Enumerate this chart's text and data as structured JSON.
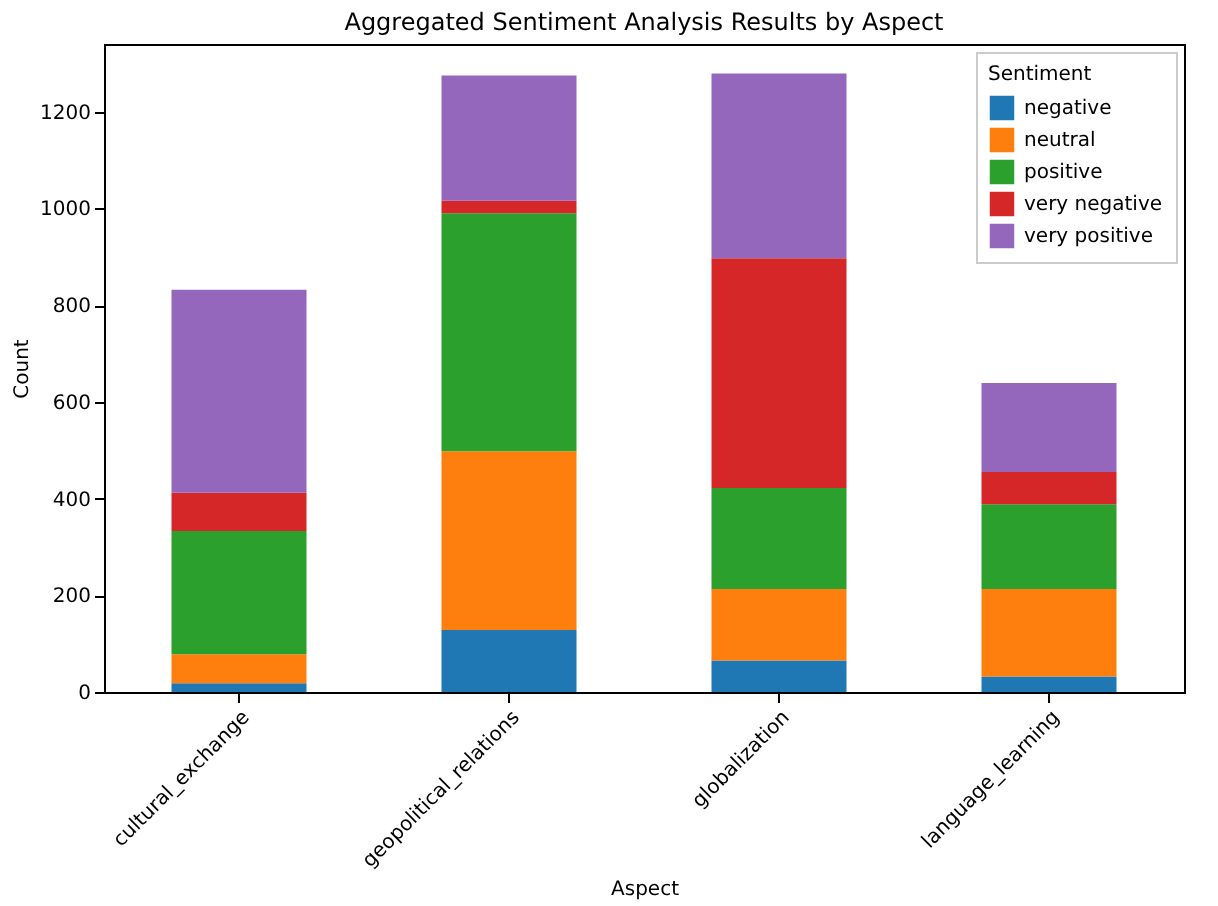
{
  "chart_data": {
    "type": "bar",
    "title": "Aggregated Sentiment Analysis Results by Aspect",
    "xlabel": "Aspect",
    "ylabel": "Count",
    "legend_title": "Sentiment",
    "categories": [
      "cultural_exchange",
      "geopolitical_relations",
      "globalization",
      "language_learning"
    ],
    "series": [
      {
        "name": "negative",
        "color": "#1f77b4",
        "values": [
          18,
          128,
          65,
          32
        ]
      },
      {
        "name": "neutral",
        "color": "#ff7f0e",
        "values": [
          60,
          370,
          148,
          181
        ]
      },
      {
        "name": "positive",
        "color": "#2ca02c",
        "values": [
          255,
          492,
          209,
          175
        ]
      },
      {
        "name": "very negative",
        "color": "#d62728",
        "values": [
          79,
          26,
          475,
          67
        ]
      },
      {
        "name": "very positive",
        "color": "#9467bd",
        "values": [
          420,
          259,
          382,
          184
        ]
      }
    ],
    "stacked": true,
    "ylim": [
      0,
      1340
    ],
    "yticks": [
      0,
      200,
      400,
      600,
      800,
      1000,
      1200
    ],
    "grid": false,
    "legend": "top right"
  }
}
